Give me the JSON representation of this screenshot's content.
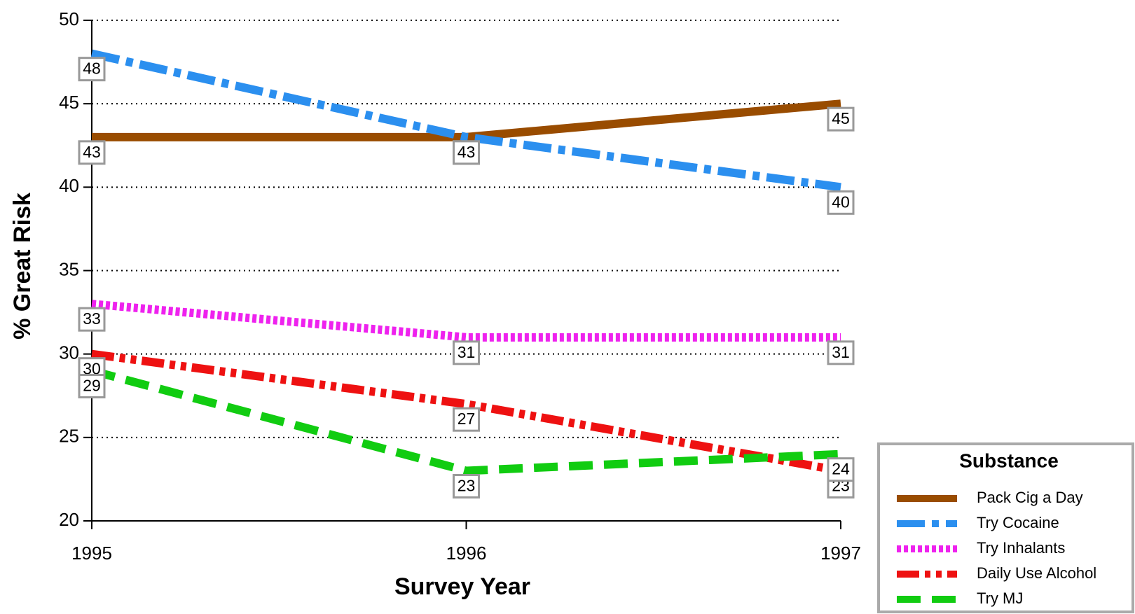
{
  "chart_data": {
    "type": "line",
    "x_label": "Survey Year",
    "y_label": "% Great Risk",
    "x": [
      1995,
      1996,
      1997
    ],
    "xlim": [
      1995,
      1997
    ],
    "xticks": [
      1995,
      1996,
      1997
    ],
    "ylim": [
      20,
      50
    ],
    "yticks": [
      20,
      25,
      30,
      35,
      40,
      45,
      50
    ],
    "grid": true,
    "legend_title": "Substance",
    "legend_position": "lower right",
    "series": [
      {
        "name": "Pack Cig a Day",
        "color": "#994c00",
        "values": [
          43,
          43,
          45
        ]
      },
      {
        "name": "Try Cocaine",
        "color": "#2b8fef",
        "values": [
          48,
          43,
          40
        ]
      },
      {
        "name": "Try Inhalants",
        "color": "#ee22ee",
        "values": [
          33,
          31,
          31
        ]
      },
      {
        "name": "Daily Use Alcohol",
        "color": "#ee1111",
        "values": [
          30,
          27,
          23
        ]
      },
      {
        "name": "Try MJ",
        "color": "#11cc11",
        "values": [
          29,
          23,
          24
        ]
      }
    ]
  }
}
